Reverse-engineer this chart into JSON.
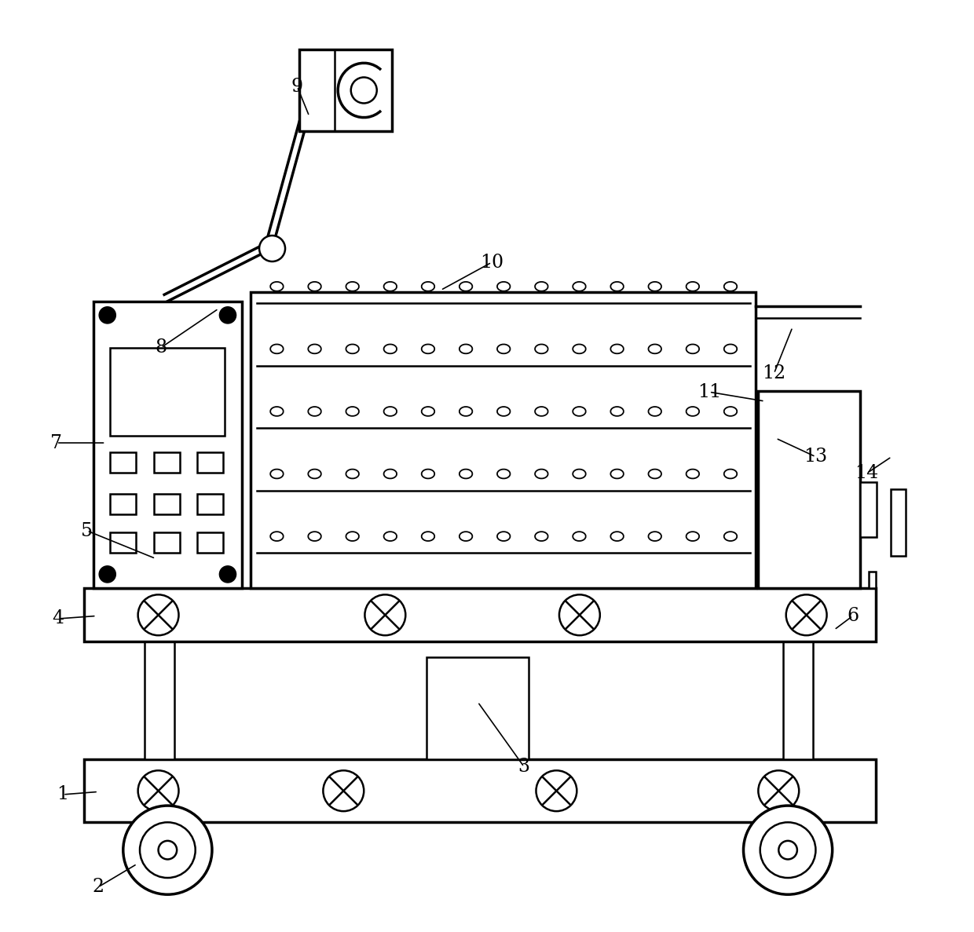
{
  "bg_color": "#ffffff",
  "line_color": "#000000",
  "lw": 1.8,
  "lw_thick": 2.5,
  "fig_width": 12.4,
  "fig_height": 11.87
}
